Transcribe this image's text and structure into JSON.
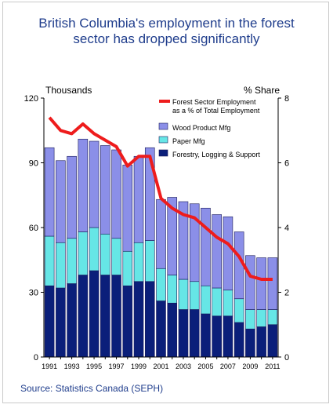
{
  "chart_data": {
    "type": "bar",
    "title": "British Columbia's employment in the forest\nsector has dropped significantly",
    "left_axis_label": "Thousands",
    "right_axis_label": "% Share",
    "source": "Source: Statistics Canada (SEPH)",
    "left_ylim": [
      0,
      120
    ],
    "right_ylim": [
      0,
      8
    ],
    "left_ticks": [
      "0",
      "30",
      "60",
      "90",
      "120"
    ],
    "right_ticks": [
      "0",
      "2",
      "4",
      "6",
      "8"
    ],
    "categories": [
      "1991",
      "1992",
      "1993",
      "1994",
      "1995",
      "1996",
      "1997",
      "1998",
      "1999",
      "2000",
      "2001",
      "2002",
      "2003",
      "2004",
      "2005",
      "2006",
      "2007",
      "2008",
      "2009",
      "2010",
      "2011"
    ],
    "x_tick_labels": [
      "1991",
      "1993",
      "1995",
      "1997",
      "1999",
      "2001",
      "2003",
      "2005",
      "2007",
      "2009",
      "2011"
    ],
    "series": [
      {
        "name": "Forestry, Logging & Support",
        "type": "stacked-bar",
        "color": "#0b1f7a",
        "values": [
          33,
          32,
          34,
          38,
          40,
          38,
          38,
          33,
          35,
          35,
          26,
          25,
          22,
          22,
          20,
          19,
          19,
          16,
          13,
          14,
          15
        ]
      },
      {
        "name": "Paper Mfg",
        "type": "stacked-bar",
        "color": "#66e6e6",
        "values": [
          23,
          21,
          21,
          20,
          20,
          19,
          17,
          16,
          18,
          19,
          15,
          13,
          14,
          13,
          13,
          13,
          12,
          11,
          9,
          8,
          7
        ]
      },
      {
        "name": "Wood Product Mfg",
        "type": "stacked-bar",
        "color": "#8b8fe8",
        "values": [
          41,
          38,
          38,
          43,
          40,
          41,
          41,
          40,
          40,
          43,
          32,
          36,
          36,
          36,
          36,
          34,
          34,
          31,
          25,
          24,
          24
        ]
      },
      {
        "name": "Forest Sector Employment as a % of Total Employment",
        "type": "line",
        "axis": "right",
        "color": "#ee1c1c",
        "values": [
          7.4,
          7.0,
          6.9,
          7.2,
          6.9,
          6.7,
          6.5,
          5.9,
          6.2,
          6.2,
          4.9,
          4.6,
          4.4,
          4.3,
          4.0,
          3.7,
          3.5,
          3.1,
          2.5,
          2.4,
          2.4
        ]
      }
    ],
    "legend": {
      "position": "top-right",
      "entries": [
        {
          "label": "Forest Sector Employment\nas a % of Total Employment",
          "series": 3
        },
        {
          "label": "Wood Product Mfg",
          "series": 2
        },
        {
          "label": "Paper Mfg",
          "series": 1
        },
        {
          "label": "Forestry, Logging & Support",
          "series": 0
        }
      ]
    }
  }
}
